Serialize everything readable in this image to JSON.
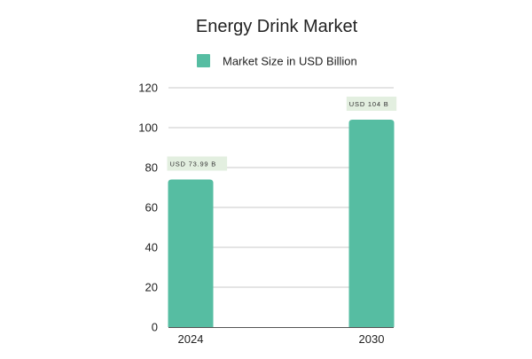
{
  "chart_data": {
    "type": "bar",
    "title": "Energy Drink Market",
    "categories": [
      "2024",
      "2030"
    ],
    "series": [
      {
        "name": "Market Size in USD Billion",
        "values": [
          73.99,
          104
        ],
        "data_labels": [
          "USD 73.99 B",
          "USD 104 B"
        ],
        "color": "#56bda2"
      }
    ],
    "ylim": [
      0,
      120
    ],
    "yticks": [
      0,
      20,
      40,
      60,
      80,
      100,
      120
    ],
    "xlabel": "",
    "ylabel": "",
    "grid": true,
    "legend": "top-center",
    "colors": {
      "bar": "#56bda2",
      "grid": "#c8c8c8",
      "axis": "#555555",
      "label_bg": "#e3efe0"
    }
  }
}
